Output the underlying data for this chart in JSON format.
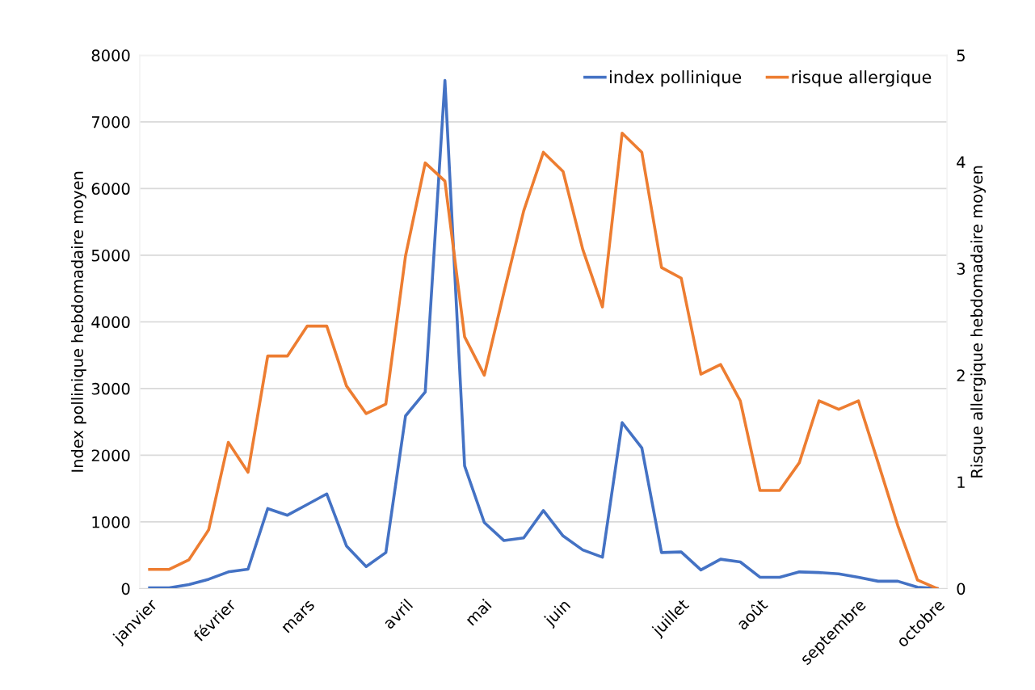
{
  "chart_data": {
    "type": "line",
    "categories": [
      "janvier",
      null,
      null,
      null,
      "février",
      null,
      null,
      null,
      "mars",
      null,
      null,
      null,
      null,
      "avril",
      null,
      null,
      null,
      "mai",
      null,
      null,
      null,
      "juin",
      null,
      null,
      null,
      null,
      null,
      "juillet",
      null,
      null,
      null,
      "août",
      null,
      null,
      null,
      null,
      "septembre",
      null,
      null,
      null,
      "octobre"
    ],
    "ylabel": "Index pollinique hebdomadaire moyen",
    "y2label": "Risque allergique hebdomadaire moyen",
    "series": [
      {
        "name": "index pollinique",
        "color": "#4472c4",
        "values": [
          10,
          10,
          60,
          140,
          250,
          290,
          1200,
          1100,
          1260,
          1420,
          640,
          330,
          540,
          2590,
          2950,
          7620,
          1840,
          990,
          720,
          760,
          1170,
          790,
          580,
          470,
          2490,
          2110,
          540,
          550,
          280,
          440,
          400,
          170,
          170,
          250,
          240,
          220,
          170,
          110,
          110,
          20,
          0
        ]
      },
      {
        "name": "risque allergique",
        "color": "#ed7d31",
        "axis": "y2",
        "values": [
          0.18,
          0.18,
          0.27,
          0.55,
          1.37,
          1.09,
          2.18,
          2.18,
          2.46,
          2.46,
          1.9,
          1.64,
          1.73,
          3.12,
          3.99,
          3.82,
          2.36,
          2.0,
          2.78,
          3.54,
          4.09,
          3.91,
          3.18,
          2.64,
          4.27,
          4.09,
          3.01,
          2.91,
          2.01,
          2.1,
          1.76,
          0.92,
          0.92,
          1.18,
          1.76,
          1.68,
          1.76,
          1.18,
          0.59,
          0.08,
          0
        ]
      }
    ],
    "ylim": [
      0,
      8000
    ],
    "yticks": [
      0,
      1000,
      2000,
      3000,
      4000,
      5000,
      6000,
      7000,
      8000
    ],
    "y2lim": [
      0,
      5
    ],
    "y2ticks": [
      0,
      1,
      2,
      3,
      4,
      5
    ],
    "grid": "y",
    "legend": "top right",
    "marker": "none",
    "line_style": "solid"
  }
}
